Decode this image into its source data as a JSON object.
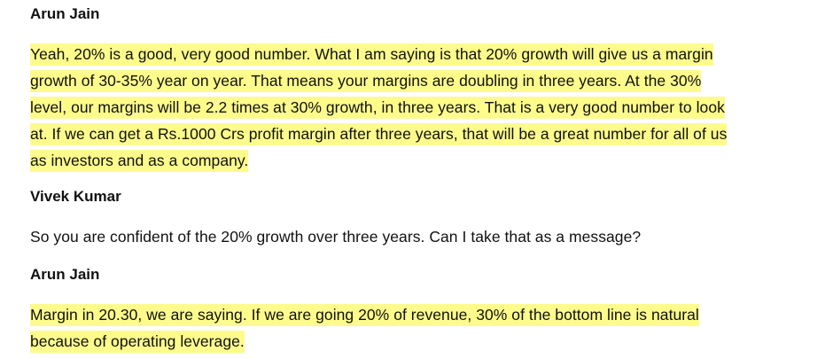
{
  "transcript": [
    {
      "speaker": "Arun Jain",
      "highlighted": true,
      "lines": [
        "Yeah, 20% is a good, very good number. What I am saying is that 20% growth will give us a margin",
        "growth of 30-35% year on year. That means your margins are doubling in three years. At the 30%",
        "level, our margins will be 2.2 times at 30% growth, in three years. That is a very good number to look",
        "at. If we can get a Rs.1000 Crs profit margin after three years, that will be a great number for all of us",
        "as investors and as a company."
      ]
    },
    {
      "speaker": "Vivek Kumar",
      "highlighted": false,
      "lines": [
        "So you are confident of the 20% growth over three years. Can I take that as a message?"
      ]
    },
    {
      "speaker": "Arun Jain",
      "highlighted": true,
      "lines": [
        "Margin in 20.30, we are saying. If we are going 20% of revenue, 30% of the bottom line is natural",
        "because of operating leverage."
      ]
    }
  ],
  "colors": {
    "highlight": "#fdfb8c",
    "text": "#111111",
    "background": "#ffffff"
  }
}
